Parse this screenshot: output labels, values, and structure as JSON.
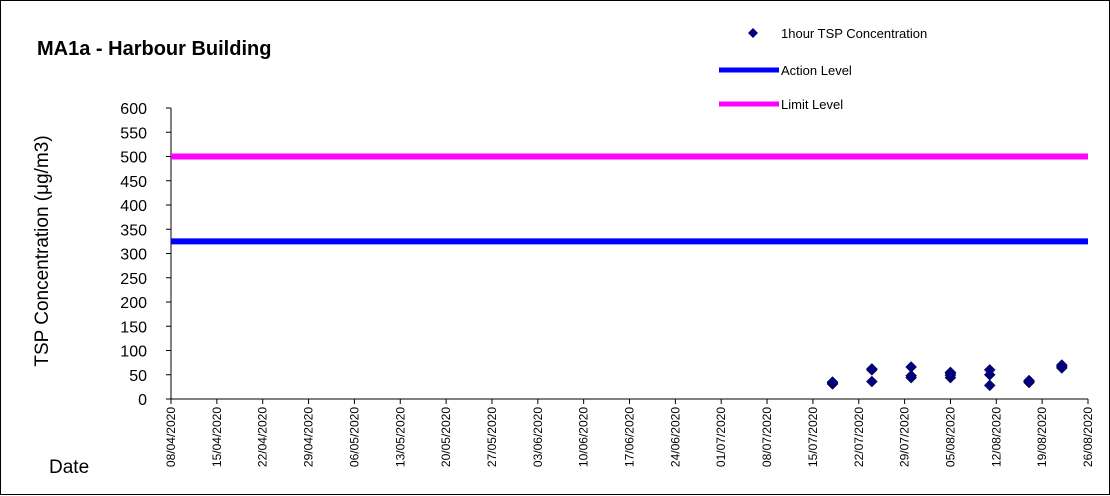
{
  "chart_data": {
    "type": "scatter",
    "title": "MA1a - Harbour Building",
    "xlabel": "Date",
    "ylabel": "TSP Concentration (μg/m3)",
    "ylim": [
      0,
      600
    ],
    "y_ticks": [
      "0",
      "50",
      "100",
      "150",
      "200",
      "250",
      "300",
      "350",
      "400",
      "450",
      "500",
      "550",
      "600"
    ],
    "xlim": [
      "08/04/2020",
      "26/08/2020"
    ],
    "x_ticks": [
      "08/04/2020",
      "15/04/2020",
      "22/04/2020",
      "29/04/2020",
      "06/05/2020",
      "13/05/2020",
      "20/05/2020",
      "27/05/2020",
      "03/06/2020",
      "10/06/2020",
      "17/06/2020",
      "24/06/2020",
      "01/07/2020",
      "08/07/2020",
      "15/07/2020",
      "22/07/2020",
      "29/07/2020",
      "05/08/2020",
      "12/08/2020",
      "19/08/2020",
      "26/08/2020"
    ],
    "grid": false,
    "legend_position": "top-right",
    "series": [
      {
        "name": "1hour TSP Concentration",
        "kind": "scatter",
        "marker": "diamond",
        "color": "#000080",
        "points": [
          {
            "x": "18/07/2020",
            "y": 31
          },
          {
            "x": "18/07/2020",
            "y": 33
          },
          {
            "x": "18/07/2020",
            "y": 35
          },
          {
            "x": "24/07/2020",
            "y": 36
          },
          {
            "x": "24/07/2020",
            "y": 60
          },
          {
            "x": "24/07/2020",
            "y": 62
          },
          {
            "x": "30/07/2020",
            "y": 44
          },
          {
            "x": "30/07/2020",
            "y": 48
          },
          {
            "x": "30/07/2020",
            "y": 66
          },
          {
            "x": "05/08/2020",
            "y": 44
          },
          {
            "x": "05/08/2020",
            "y": 49
          },
          {
            "x": "05/08/2020",
            "y": 53
          },
          {
            "x": "05/08/2020",
            "y": 55
          },
          {
            "x": "11/08/2020",
            "y": 28
          },
          {
            "x": "11/08/2020",
            "y": 50
          },
          {
            "x": "11/08/2020",
            "y": 60
          },
          {
            "x": "17/08/2020",
            "y": 34
          },
          {
            "x": "17/08/2020",
            "y": 36
          },
          {
            "x": "17/08/2020",
            "y": 38
          },
          {
            "x": "22/08/2020",
            "y": 64
          },
          {
            "x": "22/08/2020",
            "y": 67
          },
          {
            "x": "22/08/2020",
            "y": 70
          }
        ]
      },
      {
        "name": "Action Level",
        "kind": "hline",
        "value": 325,
        "color": "#0000ff"
      },
      {
        "name": "Limit Level",
        "kind": "hline",
        "value": 500,
        "color": "#ff00ff"
      }
    ]
  }
}
